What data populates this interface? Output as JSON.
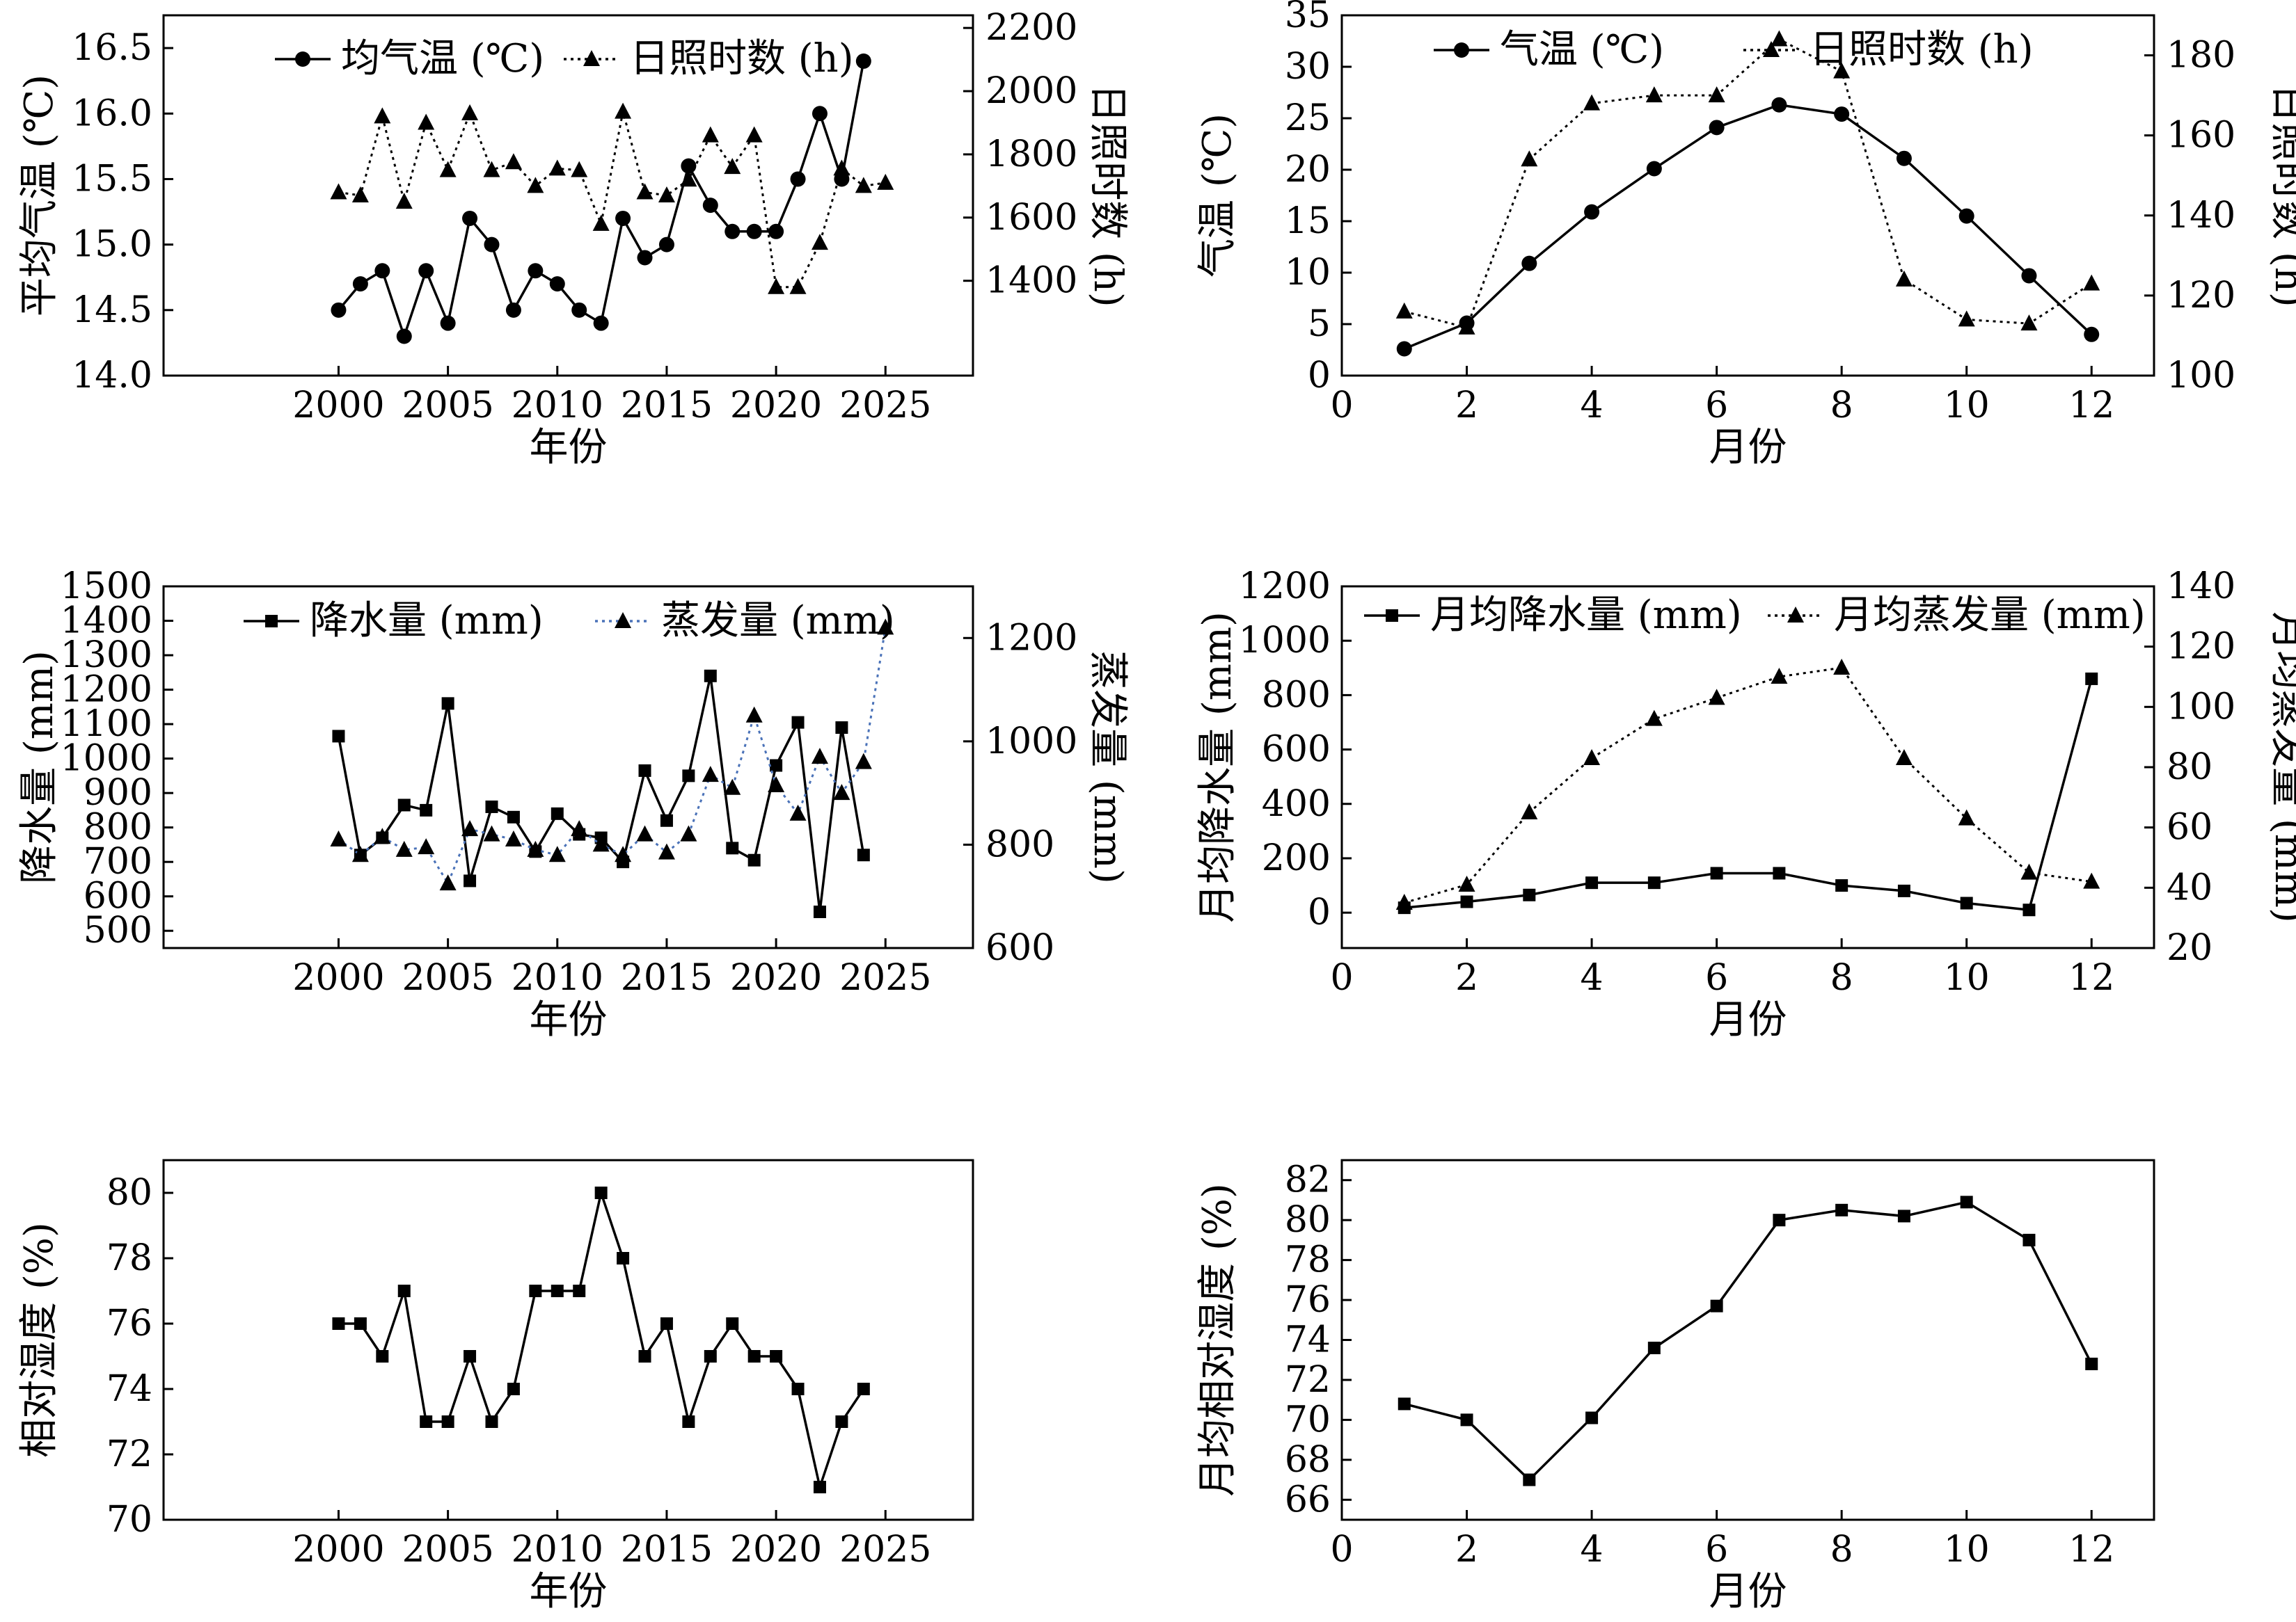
{
  "chart_data": [
    {
      "type": "line",
      "xlabel": "年份",
      "ylabel": "平均气温 (℃)",
      "y2label": "日照时数 (h)",
      "xlim": [
        1992,
        2029
      ],
      "xticks": [
        2000,
        2005,
        2010,
        2015,
        2020,
        2025
      ],
      "ylim": [
        14.0,
        16.75
      ],
      "yticks": [
        "14.0",
        "14.5",
        "15.0",
        "15.5",
        "16.0",
        "16.5"
      ],
      "y2lim": [
        1100,
        2240
      ],
      "y2ticks": [
        1400,
        1600,
        1800,
        2000,
        2200
      ],
      "legend": "top",
      "series": [
        {
          "name": "均气温 (℃)",
          "axis": "left",
          "marker": "circle",
          "style": "solid",
          "color": "#000000",
          "x": [
            2000,
            2001,
            2002,
            2003,
            2004,
            2005,
            2006,
            2007,
            2008,
            2009,
            2010,
            2011,
            2012,
            2013,
            2014,
            2015,
            2016,
            2017,
            2018,
            2019,
            2020,
            2021,
            2022,
            2023,
            2024
          ],
          "values": [
            14.5,
            14.7,
            14.8,
            14.3,
            14.8,
            14.4,
            15.2,
            15.0,
            14.5,
            14.8,
            14.7,
            14.5,
            14.4,
            15.2,
            14.9,
            15.0,
            15.6,
            15.3,
            15.1,
            15.1,
            15.1,
            15.5,
            16.0,
            15.5,
            16.4
          ]
        },
        {
          "name": "日照时数 (h)",
          "axis": "right",
          "marker": "triangle",
          "style": "dotted",
          "color": "#000000",
          "x": [
            2000,
            2001,
            2002,
            2003,
            2004,
            2005,
            2006,
            2007,
            2008,
            2009,
            2010,
            2011,
            2012,
            2013,
            2014,
            2015,
            2016,
            2017,
            2018,
            2019,
            2020,
            2021,
            2022,
            2023,
            2024,
            2025
          ],
          "values": [
            1680,
            1670,
            1920,
            1650,
            1900,
            1750,
            1930,
            1750,
            1775,
            1700,
            1755,
            1750,
            1580,
            1935,
            1680,
            1670,
            1720,
            1860,
            1760,
            1860,
            1380,
            1380,
            1520,
            1755,
            1700,
            1710
          ]
        }
      ]
    },
    {
      "type": "line",
      "xlabel": "月份",
      "ylabel": "气温 (℃)",
      "y2label": "日照时数 (h)",
      "xlim": [
        0,
        13
      ],
      "xticks": [
        0,
        2,
        4,
        6,
        8,
        10,
        12
      ],
      "ylim": [
        0,
        35
      ],
      "yticks": [
        0,
        5,
        10,
        15,
        20,
        25,
        30,
        35
      ],
      "y2lim": [
        100,
        190
      ],
      "y2ticks": [
        100,
        120,
        140,
        160,
        180
      ],
      "legend": "top",
      "series": [
        {
          "name": "气温 (℃)",
          "axis": "left",
          "marker": "circle",
          "style": "solid",
          "color": "#000000",
          "x": [
            1,
            2,
            3,
            4,
            5,
            6,
            7,
            8,
            9,
            10,
            11,
            12
          ],
          "values": [
            2.6,
            5.1,
            10.9,
            15.9,
            20.1,
            24.1,
            26.3,
            25.4,
            21.1,
            15.5,
            9.7,
            4.0
          ]
        },
        {
          "name": "日照时数 (h)",
          "axis": "right",
          "marker": "triangle",
          "style": "dotted",
          "color": "#000000",
          "x": [
            1,
            2,
            3,
            4,
            5,
            6,
            7,
            8,
            9,
            10,
            11,
            12
          ],
          "values": [
            116,
            112,
            154,
            168,
            170,
            170,
            184,
            176,
            124,
            114,
            113,
            123
          ]
        }
      ]
    },
    {
      "type": "line",
      "xlabel": "年份",
      "ylabel": "降水量 (mm)",
      "y2label": "蒸发量 (mm)",
      "xlim": [
        1992,
        2029
      ],
      "xticks": [
        2000,
        2005,
        2010,
        2015,
        2020,
        2025
      ],
      "ylim": [
        450,
        1500
      ],
      "yticks": [
        500,
        600,
        700,
        800,
        900,
        1000,
        1100,
        1200,
        1300,
        1400,
        1500
      ],
      "y2lim": [
        600,
        1300
      ],
      "y2ticks": [
        600,
        800,
        1000,
        1200
      ],
      "legend": "top",
      "series": [
        {
          "name": "降水量 (mm)",
          "axis": "left",
          "marker": "square",
          "style": "solid",
          "color": "#000000",
          "x": [
            2000,
            2001,
            2002,
            2003,
            2004,
            2005,
            2006,
            2007,
            2008,
            2009,
            2010,
            2011,
            2012,
            2013,
            2014,
            2015,
            2016,
            2017,
            2018,
            2019,
            2020,
            2021,
            2022,
            2023,
            2024
          ],
          "values": [
            1065,
            720,
            770,
            865,
            850,
            1160,
            645,
            860,
            830,
            730,
            840,
            780,
            770,
            700,
            965,
            820,
            950,
            1240,
            740,
            705,
            980,
            1105,
            555,
            1090,
            720
          ]
        },
        {
          "name": "蒸发量 (mm)",
          "axis": "right",
          "marker": "triangle",
          "style": "dotted",
          "color": "#4a72b8",
          "marker_color": "#000000",
          "x": [
            2000,
            2001,
            2002,
            2003,
            2004,
            2005,
            2006,
            2007,
            2008,
            2009,
            2010,
            2011,
            2012,
            2013,
            2014,
            2015,
            2016,
            2017,
            2018,
            2019,
            2020,
            2021,
            2022,
            2023,
            2024,
            2025
          ],
          "values": [
            810,
            780,
            815,
            790,
            795,
            725,
            830,
            820,
            810,
            790,
            780,
            830,
            800,
            780,
            820,
            785,
            820,
            935,
            910,
            1050,
            915,
            860,
            970,
            900,
            960,
            1220
          ]
        }
      ]
    },
    {
      "type": "line",
      "xlabel": "月份",
      "ylabel": "月均降水量 (mm)",
      "y2label": "月均蒸发量 (mm)",
      "xlim": [
        0,
        13
      ],
      "xticks": [
        0,
        2,
        4,
        6,
        8,
        10,
        12
      ],
      "ylim": [
        -130,
        1200
      ],
      "yticks": [
        0,
        200,
        400,
        600,
        800,
        1000,
        1200
      ],
      "y2lim": [
        20,
        140
      ],
      "y2ticks": [
        20,
        40,
        60,
        80,
        100,
        120,
        140
      ],
      "legend": "top",
      "series": [
        {
          "name": "月均降水量 (mm)",
          "axis": "left",
          "marker": "square",
          "style": "solid",
          "color": "#000000",
          "x": [
            1,
            2,
            3,
            4,
            5,
            6,
            7,
            8,
            9,
            10,
            11,
            12
          ],
          "values": [
            18,
            40,
            65,
            110,
            110,
            145,
            145,
            100,
            80,
            35,
            10,
            860
          ]
        },
        {
          "name": "月均蒸发量 (mm)",
          "axis": "right",
          "marker": "triangle",
          "style": "dotted",
          "color": "#000000",
          "x": [
            1,
            2,
            3,
            4,
            5,
            6,
            7,
            8,
            9,
            10,
            11,
            12
          ],
          "values": [
            35,
            41,
            65,
            83,
            96,
            103,
            110,
            113,
            83,
            63,
            45,
            42
          ]
        }
      ]
    },
    {
      "type": "line",
      "xlabel": "年份",
      "ylabel": "相对湿度 (%)",
      "xlim": [
        1992,
        2029
      ],
      "xticks": [
        2000,
        2005,
        2010,
        2015,
        2020,
        2025
      ],
      "ylim": [
        70,
        81
      ],
      "yticks": [
        70,
        72,
        74,
        76,
        78,
        80
      ],
      "series": [
        {
          "marker": "square",
          "style": "solid",
          "color": "#000000",
          "x": [
            2000,
            2001,
            2002,
            2003,
            2004,
            2005,
            2006,
            2007,
            2008,
            2009,
            2010,
            2011,
            2012,
            2013,
            2014,
            2015,
            2016,
            2017,
            2018,
            2019,
            2020,
            2021,
            2022,
            2023,
            2024
          ],
          "values": [
            76,
            76,
            75,
            77,
            73,
            73,
            75,
            73,
            74,
            77,
            77,
            77,
            80,
            78,
            75,
            76,
            73,
            75,
            76,
            75,
            75,
            74,
            71,
            73,
            74
          ]
        }
      ]
    },
    {
      "type": "line",
      "xlabel": "月份",
      "ylabel": "月均相对湿度 (%)",
      "xlim": [
        0,
        13
      ],
      "xticks": [
        0,
        2,
        4,
        6,
        8,
        10,
        12
      ],
      "ylim": [
        65,
        83
      ],
      "yticks": [
        66,
        68,
        70,
        72,
        74,
        76,
        78,
        80,
        82
      ],
      "series": [
        {
          "marker": "square",
          "style": "solid",
          "color": "#000000",
          "x": [
            1,
            2,
            3,
            4,
            5,
            6,
            7,
            8,
            9,
            10,
            11,
            12
          ],
          "values": [
            70.8,
            70.0,
            67.0,
            70.1,
            73.6,
            75.7,
            80.0,
            80.5,
            80.2,
            80.9,
            79.0,
            72.8
          ]
        }
      ]
    }
  ]
}
